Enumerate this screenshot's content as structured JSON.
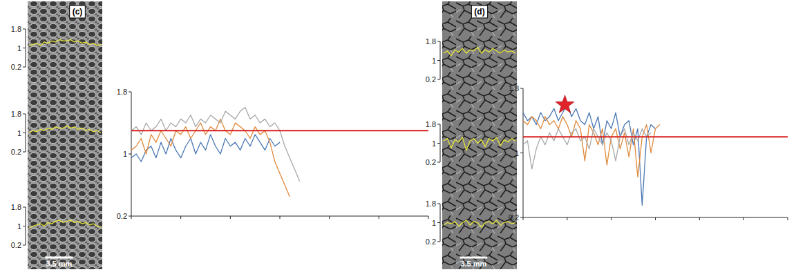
{
  "chart_data": [
    {
      "type": "line",
      "title": "(c)",
      "annotations": [
        "3.5 mm"
      ],
      "x": [
        0,
        1,
        2,
        3,
        4,
        5,
        6,
        7,
        8,
        9,
        10,
        11,
        12,
        13,
        14,
        15,
        16,
        17,
        18,
        19
      ],
      "xlim": [
        0,
        19
      ],
      "ylim": [
        0.2,
        1.8
      ],
      "yticks": [
        0.2,
        1,
        1.8
      ],
      "tick_labels": "y",
      "grid": false,
      "series": [
        {
          "color": "#e8e83a",
          "values": [
            1.1,
            1.15,
            1.2,
            1.1,
            1.25,
            1.2,
            1.3,
            1.25,
            1.35,
            1.3,
            1.3,
            1.35,
            1.25,
            1.3,
            1.2,
            1.25,
            1.15,
            1.2,
            1.1,
            1.15
          ]
        },
        {
          "color": "#e8e83a",
          "values": [
            1.0,
            1.1,
            1.05,
            1.15,
            1.1,
            1.2,
            1.15,
            1.25,
            1.2,
            1.2,
            1.3,
            1.2,
            1.25,
            1.15,
            1.2,
            1.1,
            1.15,
            1.05,
            1.1,
            1.0
          ]
        },
        {
          "color": "#e8e83a",
          "values": [
            0.9,
            1.0,
            1.05,
            1.1,
            1.0,
            1.15,
            1.1,
            1.2,
            1.25,
            1.15,
            1.2,
            1.25,
            1.15,
            1.2,
            1.1,
            1.15,
            1.05,
            1.1,
            1.0,
            0.95
          ]
        }
      ]
    },
    {
      "type": "line",
      "x": [
        0,
        1,
        2,
        3,
        4,
        5,
        6,
        7,
        8,
        9,
        10,
        11,
        12,
        13,
        14,
        15,
        16,
        17,
        18,
        19,
        20,
        21,
        22,
        23,
        24,
        25,
        26,
        27,
        28,
        29,
        30,
        31,
        32,
        33,
        34
      ],
      "xlim": [
        0,
        60
      ],
      "xticks": [
        0,
        10,
        20,
        30,
        40,
        50,
        60
      ],
      "ylim": [
        0.2,
        1.8
      ],
      "yticks": [
        0.2,
        1,
        1.8
      ],
      "tick_labels": "y",
      "grid": false,
      "series": [
        {
          "color": "#4a78b5",
          "values": [
            0.95,
            1.0,
            0.9,
            1.05,
            1.1,
            0.95,
            1.15,
            1.0,
            1.2,
            1.05,
            0.95,
            1.1,
            1.2,
            1.0,
            1.15,
            1.05,
            1.25,
            1.1,
            1.0,
            1.2,
            1.1,
            1.15,
            1.05,
            1.2,
            1.1,
            1.25,
            1.15,
            1.05,
            1.2,
            1.1,
            1.15,
            null,
            null,
            null,
            null
          ]
        },
        {
          "color": "#e08a3c",
          "values": [
            1.05,
            1.1,
            1.2,
            1.0,
            1.25,
            1.15,
            1.3,
            1.2,
            1.1,
            1.3,
            1.25,
            1.35,
            1.2,
            1.3,
            1.4,
            1.25,
            1.35,
            1.3,
            1.45,
            1.3,
            1.25,
            1.4,
            1.35,
            1.3,
            1.2,
            1.35,
            1.25,
            1.3,
            1.15,
            0.9,
            0.75,
            0.6,
            0.45,
            null,
            null
          ]
        },
        {
          "color": "#a8a8a8",
          "values": [
            1.3,
            1.35,
            1.25,
            1.4,
            1.3,
            1.35,
            1.45,
            1.3,
            1.4,
            1.35,
            1.45,
            1.4,
            1.5,
            1.35,
            1.45,
            1.4,
            1.5,
            1.45,
            1.4,
            1.55,
            1.5,
            1.45,
            1.55,
            1.6,
            1.45,
            1.5,
            1.4,
            1.45,
            1.35,
            1.4,
            1.3,
            1.1,
            0.95,
            0.8,
            0.65
          ]
        },
        {
          "color": "#d81e1e",
          "x": [
            0,
            60
          ],
          "values": [
            1.3,
            1.3
          ]
        }
      ]
    },
    {
      "type": "line",
      "title": "(d)",
      "annotations": [
        "3.5 mm"
      ],
      "x": [
        0,
        1,
        2,
        3,
        4,
        5,
        6,
        7,
        8,
        9,
        10,
        11,
        12,
        13,
        14,
        15,
        16,
        17,
        18,
        19
      ],
      "xlim": [
        0,
        19
      ],
      "ylim": [
        0.2,
        1.8
      ],
      "yticks": [
        0.2,
        1,
        1.8
      ],
      "tick_labels": "y",
      "grid": false,
      "series": [
        {
          "color": "#e8e83a",
          "values": [
            1.3,
            1.4,
            1.2,
            1.45,
            1.35,
            1.5,
            1.3,
            1.45,
            1.4,
            1.55,
            1.3,
            1.45,
            1.35,
            1.5,
            1.4,
            1.3,
            1.45,
            1.35,
            1.4,
            1.3
          ]
        },
        {
          "color": "#e8e83a",
          "values": [
            1.1,
            1.2,
            0.8,
            1.15,
            1.05,
            1.25,
            0.7,
            1.1,
            1.2,
            1.0,
            1.15,
            0.85,
            1.2,
            1.1,
            1.25,
            0.9,
            1.15,
            1.05,
            1.2,
            1.1
          ]
        },
        {
          "color": "#e8e83a",
          "values": [
            0.9,
            1.0,
            0.95,
            1.05,
            0.85,
            1.0,
            1.1,
            0.9,
            1.05,
            1.0,
            0.8,
            1.0,
            1.05,
            0.95,
            1.1,
            0.9,
            1.0,
            1.05,
            0.95,
            1.0
          ]
        }
      ]
    },
    {
      "type": "line",
      "marker": "star",
      "x": [
        0,
        1,
        2,
        3,
        4,
        5,
        6,
        7,
        8,
        9,
        10,
        11,
        12,
        13,
        14,
        15,
        16,
        17,
        18,
        19,
        20,
        21,
        22,
        23,
        24,
        25,
        26,
        27,
        28,
        29,
        30,
        31
      ],
      "xlim": [
        0,
        60
      ],
      "xticks": [
        0,
        10,
        20,
        30,
        40,
        50,
        60
      ],
      "ylim": [
        0.2,
        1.8
      ],
      "yticks": [
        0.2,
        1,
        1.8
      ],
      "tick_labels": "y",
      "grid": false,
      "series": [
        {
          "color": "#4a78b5",
          "values": [
            1.5,
            1.4,
            1.45,
            1.35,
            1.5,
            1.4,
            1.45,
            1.55,
            1.4,
            1.5,
            1.6,
            1.45,
            1.55,
            1.4,
            1.35,
            1.5,
            1.3,
            1.45,
            1.1,
            1.4,
            1.3,
            1.5,
            1.2,
            1.35,
            1.4,
            1.1,
            1.3,
            0.35,
            1.2,
            1.35,
            1.3,
            null
          ]
        },
        {
          "color": "#e08a3c",
          "values": [
            1.4,
            1.35,
            1.45,
            1.4,
            1.3,
            1.45,
            1.35,
            1.4,
            1.3,
            1.45,
            1.35,
            1.2,
            1.4,
            1.3,
            0.9,
            1.35,
            1.25,
            1.1,
            1.3,
            0.85,
            1.2,
            1.3,
            1.05,
            1.25,
            0.95,
            1.3,
            0.7,
            1.2,
            1.35,
            1.0,
            1.3,
            1.35
          ]
        },
        {
          "color": "#a8a8a8",
          "values": [
            1.1,
            1.15,
            0.8,
            1.05,
            1.2,
            1.1,
            1.25,
            1.15,
            1.3,
            1.2,
            1.1,
            1.25,
            1.3,
            1.15,
            1.2,
            1.05,
            1.3,
            1.2,
            1.1,
            1.25,
            1.15,
            0.9,
            1.2,
            1.3,
            1.1,
            1.25,
            1.15,
            1.3,
            1.2,
            1.25,
            null,
            null
          ]
        },
        {
          "color": "#d81e1e",
          "x": [
            0,
            60
          ],
          "values": [
            1.2,
            1.2
          ]
        }
      ]
    }
  ]
}
